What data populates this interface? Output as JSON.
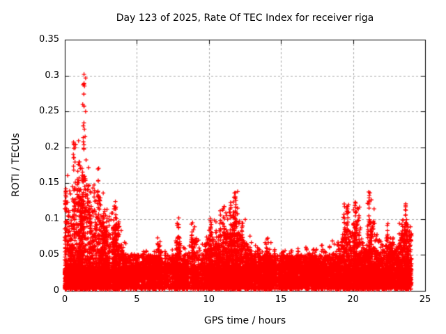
{
  "page": {
    "background": "#ffffff",
    "description_of_view": "Full-window gnuplot scatter chart on white background"
  },
  "chart_data": {
    "type": "scatter",
    "title": "Day 123 of 2025, Rate Of TEC Index for receiver riga",
    "xlabel": "GPS time / hours",
    "ylabel": "ROTI / TECUs",
    "xlim": [
      0,
      25
    ],
    "ylim": [
      0,
      0.35
    ],
    "xticks": {
      "values": [
        0,
        5,
        10,
        15,
        20,
        25
      ],
      "labels": [
        "0",
        "5",
        "10",
        "15",
        "20",
        "25"
      ]
    },
    "yticks": {
      "values": [
        0,
        0.05,
        0.1,
        0.15,
        0.2,
        0.25,
        0.3,
        0.35
      ],
      "labels": [
        "0",
        "0.05",
        "0.1",
        "0.15",
        "0.2",
        "0.25",
        "0.3",
        "0.35"
      ]
    },
    "grid": true,
    "legend": false,
    "marker": "plus",
    "colors": {
      "points": "#ff0000",
      "grid": "#a9a9a9",
      "frame": "#000000",
      "text": "#000000"
    },
    "data_time_span_hours": [
      0,
      24.05
    ],
    "peak": {
      "t_hours": 1.35,
      "roti": 0.302
    },
    "baseline_band": {
      "roti_min": 0.002,
      "roti_max": 0.03,
      "description": "near-solid band of + markers present at all hours"
    },
    "mid_band": {
      "roti_min": 0.03,
      "roti_max": 0.05,
      "description": "semi-dense scatter above the solid band at all hours"
    },
    "envelope_roti_max": {
      "t_start_hours": 0,
      "t_step_hours": 0.25,
      "values": [
        0.165,
        0.14,
        0.2,
        0.21,
        0.185,
        0.3,
        0.21,
        0.165,
        0.15,
        0.175,
        0.14,
        0.12,
        0.11,
        0.12,
        0.125,
        0.095,
        0.07,
        0.062,
        0.058,
        0.052,
        0.05,
        0.052,
        0.056,
        0.05,
        0.052,
        0.068,
        0.075,
        0.062,
        0.055,
        0.052,
        0.058,
        0.1,
        0.068,
        0.06,
        0.072,
        0.095,
        0.098,
        0.08,
        0.068,
        0.085,
        0.105,
        0.1,
        0.09,
        0.115,
        0.12,
        0.115,
        0.125,
        0.14,
        0.11,
        0.1,
        0.09,
        0.078,
        0.07,
        0.065,
        0.06,
        0.068,
        0.075,
        0.068,
        0.06,
        0.056,
        0.056,
        0.062,
        0.056,
        0.055,
        0.06,
        0.056,
        0.062,
        0.06,
        0.058,
        0.062,
        0.06,
        0.064,
        0.06,
        0.066,
        0.07,
        0.068,
        0.08,
        0.12,
        0.125,
        0.11,
        0.123,
        0.125,
        0.09,
        0.078,
        0.138,
        0.13,
        0.08,
        0.072,
        0.078,
        0.095,
        0.09,
        0.078,
        0.082,
        0.11,
        0.126,
        0.115
      ]
    },
    "notable_spikes": [
      {
        "t": 0.05,
        "roti_min": 0.12,
        "roti_max": 0.168,
        "points": 10
      },
      {
        "t": 0.62,
        "roti_min": 0.185,
        "roti_max": 0.208,
        "points": 8
      },
      {
        "t": 1.3,
        "roti_min": 0.19,
        "roti_max": 0.24,
        "points": 6
      },
      {
        "t": 1.35,
        "roti_min": 0.25,
        "roti_max": 0.302,
        "points": 7
      },
      {
        "t": 2.3,
        "roti_min": 0.13,
        "roti_max": 0.175,
        "points": 8
      },
      {
        "t": 3.52,
        "roti_min": 0.09,
        "roti_max": 0.125,
        "points": 8
      },
      {
        "t": 6.45,
        "roti_min": 0.05,
        "roti_max": 0.074,
        "points": 6
      },
      {
        "t": 7.9,
        "roti_min": 0.06,
        "roti_max": 0.102,
        "points": 7
      },
      {
        "t": 8.8,
        "roti_min": 0.06,
        "roti_max": 0.096,
        "points": 8
      },
      {
        "t": 10.1,
        "roti_min": 0.07,
        "roti_max": 0.105,
        "points": 8
      },
      {
        "t": 10.78,
        "roti_min": 0.07,
        "roti_max": 0.112,
        "points": 9
      },
      {
        "t": 11.05,
        "roti_min": 0.08,
        "roti_max": 0.12,
        "points": 9
      },
      {
        "t": 11.5,
        "roti_min": 0.08,
        "roti_max": 0.125,
        "points": 8
      },
      {
        "t": 11.85,
        "roti_min": 0.1,
        "roti_max": 0.141,
        "points": 9
      },
      {
        "t": 12.3,
        "roti_min": 0.06,
        "roti_max": 0.098,
        "points": 7
      },
      {
        "t": 14.0,
        "roti_min": 0.045,
        "roti_max": 0.072,
        "points": 6
      },
      {
        "t": 19.4,
        "roti_min": 0.07,
        "roti_max": 0.122,
        "points": 10
      },
      {
        "t": 19.62,
        "roti_min": 0.08,
        "roti_max": 0.125,
        "points": 8
      },
      {
        "t": 20.15,
        "roti_min": 0.08,
        "roti_max": 0.124,
        "points": 9
      },
      {
        "t": 20.42,
        "roti_min": 0.07,
        "roti_max": 0.11,
        "points": 8
      },
      {
        "t": 21.1,
        "roti_min": 0.09,
        "roti_max": 0.138,
        "points": 10
      },
      {
        "t": 22.4,
        "roti_min": 0.06,
        "roti_max": 0.095,
        "points": 7
      },
      {
        "t": 23.45,
        "roti_min": 0.07,
        "roti_max": 0.115,
        "points": 8
      },
      {
        "t": 23.65,
        "roti_min": 0.09,
        "roti_max": 0.126,
        "points": 8
      }
    ]
  }
}
